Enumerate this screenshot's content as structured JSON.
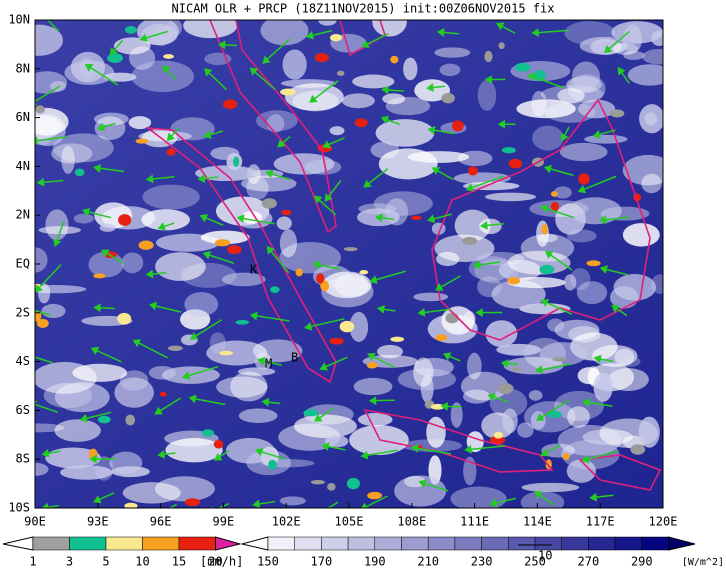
{
  "title": "NICAM OLR + PRCP (18Z11NOV2015) init:00Z06NOV2015 fix",
  "lat_labels": [
    "10N",
    "8N",
    "6N",
    "4N",
    "2N",
    "EQ",
    "2S",
    "4S",
    "6S",
    "8S",
    "10S"
  ],
  "lon_labels": [
    "90E",
    "93E",
    "96E",
    "99E",
    "102E",
    "105E",
    "108E",
    "111E",
    "114E",
    "117E",
    "120E"
  ],
  "markers": [
    "K",
    "M",
    "B"
  ],
  "precip_colorbar": {
    "labels": [
      1,
      3,
      5,
      10,
      15,
      20
    ],
    "unit": "[mm/h]"
  },
  "olr_colorbar": {
    "labels": [
      150,
      170,
      190,
      210,
      230,
      250,
      270,
      290
    ],
    "unit": "[W/m^2]"
  },
  "vector_label": "10"
}
